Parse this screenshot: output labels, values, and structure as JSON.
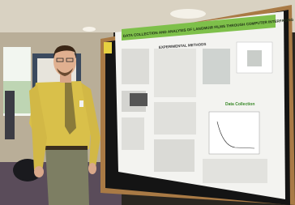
{
  "poster": {
    "title": "DATA COLLECTION AND ANALYSIS OF LANGMUIR FILMS THROUGH COMPUTER INTERFACING",
    "sections": [
      "EXPERIMENTAL METHODS",
      "Data Collection"
    ]
  }
}
